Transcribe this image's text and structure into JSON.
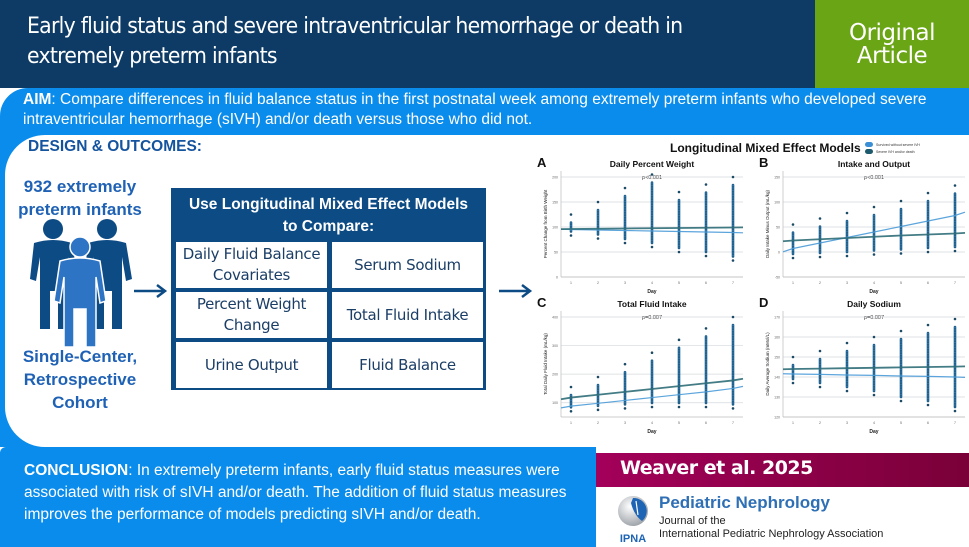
{
  "header": {
    "title": "Early fluid status and severe intraventricular hemorrhage or death in extremely preterm infants",
    "badge_line1": "Original",
    "badge_line2": "Article"
  },
  "aim": {
    "label": "AIM",
    "text": ": Compare differences in fluid balance status in the first postnatal week among extremely preterm infants who developed severe intraventricular hemorrhage (sIVH) and/or death versus those who did not."
  },
  "design": {
    "title": "DESIGN & OUTCOMES:",
    "count_line1": "932 extremely",
    "count_line2": "preterm infants",
    "cohort_line1": "Single-Center,",
    "cohort_line2": "Retrospective",
    "cohort_line3": "Cohort",
    "table_head_line1": "Use Longitudinal Mixed Effect Models",
    "table_head_line2": "to Compare:",
    "cells": [
      [
        "Daily Fluid Balance",
        "Covariates"
      ],
      [
        "Serum Sodium"
      ],
      [
        "Percent Weight",
        "Change"
      ],
      [
        "Total Fluid Intake"
      ],
      [
        "Urine Output"
      ],
      [
        "Fluid Balance"
      ]
    ]
  },
  "models": {
    "title": "Longitudinal Mixed Effect Models",
    "legend": [
      {
        "label": "Survived without severe IVH",
        "color": "#3a8fd6"
      },
      {
        "label": "Severe IVH and/or death",
        "color": "#1e5a6e"
      }
    ]
  },
  "chart_data": [
    {
      "panel": "A",
      "type": "scatter",
      "title": "Daily Percent Weight",
      "annotation": "p<0.001",
      "xlabel": "Day",
      "ylabel": "Percent Change from Birth Weight",
      "x": [
        1,
        2,
        3,
        4,
        5,
        6,
        7
      ],
      "yticks": [
        0,
        50,
        100,
        150,
        200
      ],
      "ylim": [
        0,
        200
      ],
      "ranges": [
        [
          83,
          125
        ],
        [
          77,
          150
        ],
        [
          68,
          178
        ],
        [
          60,
          205
        ],
        [
          50,
          170
        ],
        [
          42,
          185
        ],
        [
          33,
          200
        ]
      ],
      "series": [
        {
          "name": "Survived without severe IVH",
          "trend": [
            95,
            94,
            93,
            92,
            91,
            90,
            89
          ]
        },
        {
          "name": "Severe IVH and/or death",
          "trend": [
            96,
            96.5,
            97,
            97.5,
            98,
            98.5,
            99
          ]
        }
      ]
    },
    {
      "panel": "B",
      "type": "scatter",
      "title": "Intake and Output",
      "annotation": "p<0.001",
      "xlabel": "Day",
      "ylabel": "Daily Intake Minus Output (mL/kg)",
      "x": [
        1,
        2,
        3,
        4,
        5,
        6,
        7
      ],
      "yticks": [
        -50,
        0,
        50,
        100,
        150
      ],
      "ylim": [
        -50,
        150
      ],
      "ranges": [
        [
          -12,
          55
        ],
        [
          -10,
          67
        ],
        [
          -8,
          78
        ],
        [
          -5,
          90
        ],
        [
          -3,
          102
        ],
        [
          0,
          118
        ],
        [
          2,
          133
        ]
      ],
      "series": [
        {
          "name": "Survived without severe IVH",
          "trend": [
            7,
            18,
            29,
            40,
            51,
            62,
            73
          ]
        },
        {
          "name": "Severe IVH and/or death",
          "trend": [
            23,
            25.5,
            28,
            30.5,
            33,
            35,
            37
          ]
        }
      ]
    },
    {
      "panel": "C",
      "type": "scatter",
      "title": "Total Fluid Intake",
      "annotation": "p=0.007",
      "xlabel": "Day",
      "ylabel": "Total Daily Fluid Intake (mL/kg)",
      "x": [
        1,
        2,
        3,
        4,
        5,
        6,
        7
      ],
      "yticks": [
        100,
        200,
        300,
        400
      ],
      "ylim": [
        50,
        400
      ],
      "ranges": [
        [
          70,
          155
        ],
        [
          75,
          190
        ],
        [
          80,
          235
        ],
        [
          85,
          275
        ],
        [
          85,
          320
        ],
        [
          85,
          360
        ],
        [
          80,
          400
        ]
      ],
      "series": [
        {
          "name": "Survived without severe IVH",
          "trend": [
            88,
            98,
            108,
            118,
            128,
            138,
            150
          ]
        },
        {
          "name": "Severe IVH and/or death",
          "trend": [
            118,
            128,
            138,
            148,
            158,
            168,
            178
          ]
        }
      ]
    },
    {
      "panel": "D",
      "type": "scatter",
      "title": "Daily Sodium",
      "annotation": "p=0.007",
      "xlabel": "Day",
      "ylabel": "Daily Average Sodium (mMol/L)",
      "x": [
        1,
        2,
        3,
        4,
        5,
        6,
        7
      ],
      "yticks": [
        120,
        130,
        140,
        150,
        160,
        170
      ],
      "ylim": [
        120,
        170
      ],
      "ranges": [
        [
          137,
          150
        ],
        [
          135,
          153
        ],
        [
          133,
          157
        ],
        [
          131,
          160
        ],
        [
          128,
          163
        ],
        [
          126,
          166
        ],
        [
          123,
          169
        ]
      ],
      "series": [
        {
          "name": "Survived without severe IVH",
          "trend": [
            141.5,
            141.3,
            141,
            140.8,
            140.5,
            140.3,
            140
          ]
        },
        {
          "name": "Severe IVH and/or death",
          "trend": [
            144,
            144.2,
            144.4,
            144.6,
            144.8,
            145,
            145.2
          ]
        }
      ]
    }
  ],
  "conclusion": {
    "label": "CONCLUSION",
    "text": ": In extremely preterm infants, early fluid status measures were associated with risk of sIVH and/or death. The addition of fluid status measures improves the performance of models predicting sIVH and/or death."
  },
  "citation": "Weaver et al. 2025",
  "journal": {
    "name": "Pediatric Nephrology",
    "sub_line1": "Journal of the",
    "sub_line2": "International Pediatric Nephrology Association",
    "logo_text": "IPNA"
  }
}
